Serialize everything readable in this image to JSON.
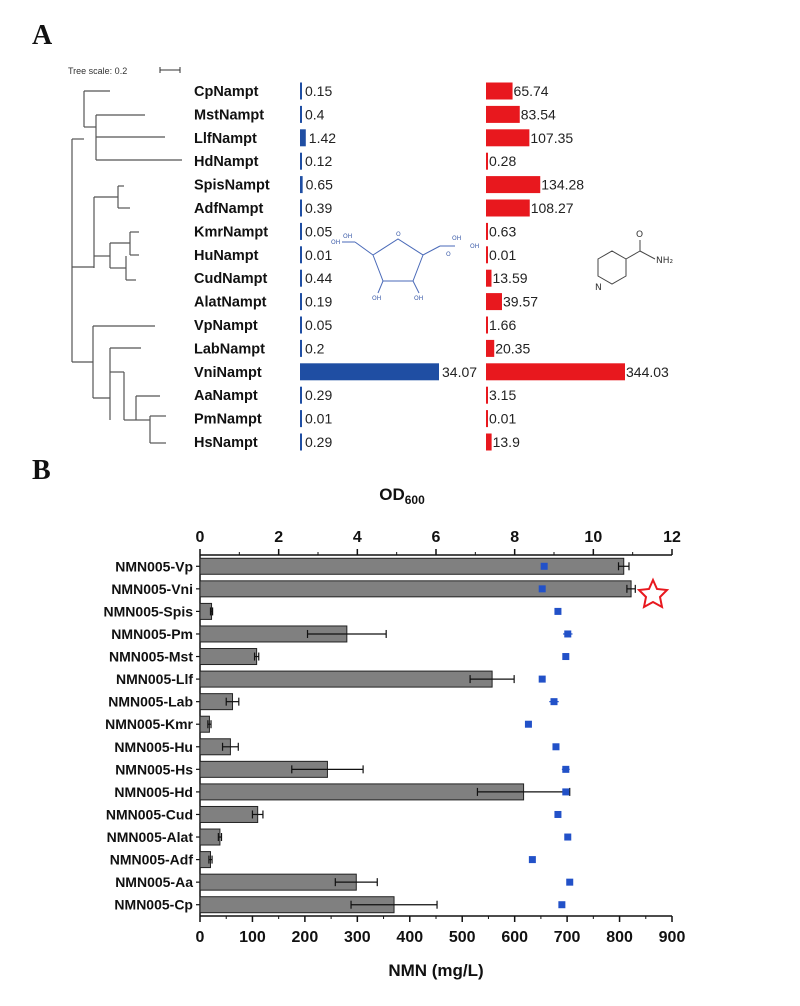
{
  "colors": {
    "blue": "#1f4ea3",
    "red": "#e8181e",
    "bar_gray": "#808080",
    "dot_blue": "#2251c8",
    "star": "#e8181e"
  },
  "panelA": {
    "label": "A",
    "tree_scale_label": "Tree scale: 0.2",
    "chart_data": {
      "type": "bar",
      "categories": [
        "CpNampt",
        "MstNampt",
        "LlfNampt",
        "HdNampt",
        "SpisNampt",
        "AdfNampt",
        "KmrNampt",
        "HuNampt",
        "CudNampt",
        "AlatNampt",
        "VpNampt",
        "LabNampt",
        "VniNampt",
        "AaNampt",
        "PmNampt",
        "HsNampt"
      ],
      "series": [
        {
          "values": [
            0.15,
            0.4,
            1.42,
            0.12,
            0.65,
            0.39,
            0.05,
            0.01,
            0.44,
            0.19,
            0.05,
            0.2,
            34.07,
            0.29,
            0.01,
            0.29
          ],
          "labels": [
            "0.15",
            "0.4",
            "1.42",
            "0.12",
            "0.65",
            "0.39",
            "0.05",
            "0.01",
            "0.44",
            "0.19",
            "0.05",
            "0.2",
            "34.07",
            "0.29",
            "0.01",
            "0.29"
          ],
          "color": "#1f4ea3"
        },
        {
          "values": [
            65.74,
            83.54,
            107.35,
            0.28,
            134.28,
            108.27,
            0.63,
            0.01,
            13.59,
            39.57,
            1.66,
            20.35,
            344.03,
            3.15,
            0.01,
            13.9
          ],
          "labels": [
            "65.74",
            "83.54",
            "107.35",
            "0.28",
            "134.28",
            "108.27",
            "0.63",
            "0.01",
            "13.59",
            "39.57",
            "1.66",
            "20.35",
            "344.03",
            "3.15",
            "0.01",
            "13.9"
          ],
          "color": "#e8181e"
        }
      ]
    },
    "chem_labels": {
      "prpp": [
        "OH",
        "OH",
        "OH",
        "OH",
        "OH",
        "OH",
        "O",
        "O"
      ],
      "nicotinamide": [
        "O",
        "NH₂",
        "N"
      ]
    }
  },
  "panelB": {
    "label": "B",
    "top_axis_title": "OD",
    "top_axis_subscript": "600",
    "bottom_axis_title": "NMN (mg/L)",
    "chart_data": {
      "type": "bar",
      "orientation": "horizontal",
      "categories": [
        "NMN005-Vp",
        "NMN005-Vni",
        "NMN005-Spis",
        "NMN005-Pm",
        "NMN005-Mst",
        "NMN005-Llf",
        "NMN005-Lab",
        "NMN005-Kmr",
        "NMN005-Hu",
        "NMN005-Hs",
        "NMN005-Hd",
        "NMN005-Cud",
        "NMN005-Alat",
        "NMN005-Adf",
        "NMN005-Aa",
        "NMN005-Cp"
      ],
      "nmn_mg_per_L": [
        808,
        822,
        22,
        280,
        108,
        557,
        62,
        18,
        58,
        243,
        617,
        110,
        38,
        20,
        298,
        370
      ],
      "nmn_error": [
        10,
        8,
        2,
        75,
        4,
        42,
        12,
        3,
        15,
        68,
        88,
        10,
        3,
        3,
        40,
        82
      ],
      "od600": [
        8.75,
        8.7,
        9.1,
        9.35,
        9.3,
        8.7,
        9.0,
        8.35,
        9.05,
        9.3,
        9.3,
        9.1,
        9.35,
        8.45,
        9.4,
        9.2
      ],
      "od600_error": [
        0.08,
        0.03,
        0.04,
        0.12,
        0.07,
        0.04,
        0.12,
        0.03,
        0.04,
        0.1,
        0.03,
        0.03,
        0.03,
        0.05,
        0.03,
        0.07
      ],
      "xlim_nmn": [
        0,
        900
      ],
      "xticks_nmn": [
        "0",
        "100",
        "200",
        "300",
        "400",
        "500",
        "600",
        "700",
        "800",
        "900"
      ],
      "xlim_od600": [
        0,
        12
      ],
      "xticks_od600": [
        "0",
        "2",
        "4",
        "6",
        "8",
        "10",
        "12"
      ],
      "highlight": "NMN005-Vni"
    }
  }
}
